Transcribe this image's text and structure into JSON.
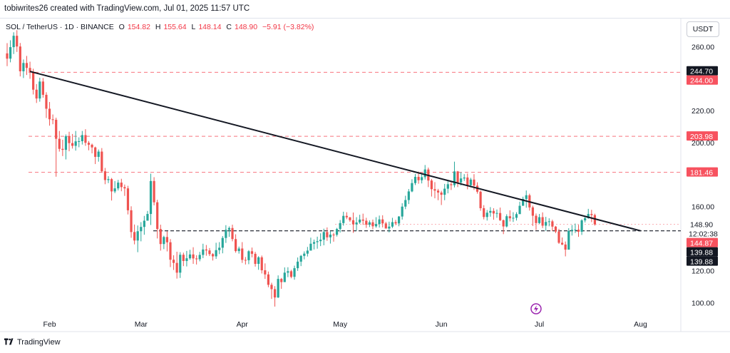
{
  "header": {
    "caption": "tobiwrites26 created with TradingView.com, Jul 01, 2025 11:57 UTC"
  },
  "legend": {
    "symbol": "SOL / TetherUS · 1D · BINANCE",
    "open_label": "O",
    "open": "154.82",
    "high_label": "H",
    "high": "155.64",
    "low_label": "L",
    "low": "148.14",
    "close_label": "C",
    "close": "148.90",
    "change": "−5.91 (−3.82%)"
  },
  "currency_button": "USDT",
  "footer": {
    "brand": "TradingView"
  },
  "colors": {
    "up": "#26a69a",
    "down": "#ef5350",
    "resistance": "#f7525f",
    "trendline": "#131722",
    "badge_red": "#f7525f",
    "badge_dark": "#131722"
  },
  "chart_data": {
    "type": "candlestick",
    "symbol": "SOL / TetherUS",
    "interval": "1D",
    "exchange": "BINANCE",
    "y_axis_ticks": [
      260,
      240,
      220,
      200,
      160,
      120,
      100
    ],
    "ylim": [
      93,
      270
    ],
    "x_axis_ticks": [
      "Feb",
      "Mar",
      "Apr",
      "May",
      "Jun",
      "Jul",
      "Aug"
    ],
    "grid": false,
    "horizontal_levels": [
      {
        "value": 244.0,
        "label": "244.00",
        "style": "dashed-red"
      },
      {
        "value": 203.98,
        "label": "203.98",
        "style": "dashed-red"
      },
      {
        "value": 181.46,
        "label": "181.46",
        "style": "dashed-red"
      },
      {
        "value": 144.87,
        "label": "144.87",
        "style": "dashed-black"
      }
    ],
    "price_badges": [
      {
        "value": 244.7,
        "label": "244.70",
        "color": "dark"
      },
      {
        "value": 244.0,
        "label": "244.00",
        "color": "red"
      },
      {
        "value": 203.98,
        "label": "203.98",
        "color": "red"
      },
      {
        "value": 181.46,
        "label": "181.46",
        "color": "red"
      },
      {
        "value": 148.9,
        "label": "148.90",
        "color": "plain",
        "sub": "12:02:38"
      },
      {
        "value": 144.87,
        "label": "144.87",
        "color": "red"
      },
      {
        "value": 139.88,
        "label": "139.88",
        "color": "dark"
      },
      {
        "value": 139.88,
        "label": "139.88",
        "color": "dark"
      }
    ],
    "trendline": {
      "from": {
        "date": "2025-01-26",
        "value": 244.5
      },
      "to": {
        "date": "2025-08-01",
        "value": 144.87
      }
    },
    "range_start": "2025-01-19",
    "candles": [
      [
        255.8,
        252.5,
        262.2,
        247.8
      ],
      [
        252.5,
        259.7,
        264.0,
        250.2
      ],
      [
        259.7,
        266.8,
        269.0,
        255.4
      ],
      [
        266.8,
        260.1,
        270.3,
        256.7
      ],
      [
        260.1,
        244.6,
        262.3,
        241.4
      ],
      [
        244.6,
        249.8,
        252.0,
        240.4
      ],
      [
        249.8,
        246.7,
        254.2,
        242.3
      ],
      [
        246.7,
        244.3,
        250.6,
        239.9
      ],
      [
        244.3,
        233.1,
        246.2,
        230.1
      ],
      [
        233.1,
        227.6,
        236.6,
        224.8
      ],
      [
        227.6,
        238.2,
        240.6,
        225.6
      ],
      [
        238.2,
        229.9,
        240.4,
        228.1
      ],
      [
        229.9,
        221.2,
        231.5,
        215.4
      ],
      [
        221.2,
        214.6,
        225.4,
        210.6
      ],
      [
        214.6,
        214.3,
        217.6,
        211.5
      ],
      [
        214.3,
        202.4,
        215.6,
        178.7
      ],
      [
        202.4,
        196.1,
        207.3,
        194.4
      ],
      [
        196.1,
        195.5,
        201.8,
        191.6
      ],
      [
        195.5,
        204.0,
        205.1,
        189.5
      ],
      [
        204.0,
        199.7,
        206.8,
        194.6
      ],
      [
        199.7,
        198.0,
        205.4,
        196.3
      ],
      [
        198.0,
        200.8,
        207.3,
        195.0
      ],
      [
        200.8,
        200.9,
        203.3,
        197.1
      ],
      [
        200.9,
        204.7,
        207.3,
        198.8
      ],
      [
        204.7,
        199.9,
        208.4,
        198.0
      ],
      [
        199.9,
        198.7,
        201.0,
        195.2
      ],
      [
        198.7,
        197.0,
        199.4,
        193.3
      ],
      [
        197.0,
        191.1,
        197.5,
        186.6
      ],
      [
        191.1,
        194.4,
        195.7,
        188.1
      ],
      [
        194.4,
        182.1,
        196.6,
        181.3
      ],
      [
        182.1,
        176.6,
        184.2,
        174.0
      ],
      [
        176.6,
        177.2,
        179.0,
        174.7
      ],
      [
        177.2,
        169.5,
        177.9,
        163.8
      ],
      [
        169.5,
        171.4,
        176.0,
        168.4
      ],
      [
        171.4,
        175.0,
        176.7,
        170.1
      ],
      [
        175.0,
        172.2,
        177.4,
        169.6
      ],
      [
        172.2,
        171.4,
        173.8,
        166.7
      ],
      [
        171.4,
        157.7,
        173.0,
        155.1
      ],
      [
        157.7,
        144.1,
        160.2,
        140.5
      ],
      [
        144.1,
        138.8,
        148.8,
        136.4
      ],
      [
        138.8,
        144.6,
        148.2,
        131.5
      ],
      [
        144.6,
        147.3,
        150.3,
        138.3
      ],
      [
        147.3,
        151.2,
        154.2,
        142.4
      ],
      [
        151.2,
        155.4,
        157.3,
        151.6
      ],
      [
        155.4,
        176.0,
        180.6,
        148.5
      ],
      [
        176.0,
        162.7,
        178.4,
        160.8
      ],
      [
        162.7,
        146.0,
        164.3,
        140.1
      ],
      [
        146.0,
        136.6,
        148.7,
        132.5
      ],
      [
        136.6,
        141.0,
        141.8,
        133.4
      ],
      [
        141.0,
        137.7,
        144.6,
        132.0
      ],
      [
        137.7,
        126.8,
        139.7,
        122.2
      ],
      [
        126.8,
        124.8,
        129.6,
        120.4
      ],
      [
        124.8,
        118.7,
        131.8,
        115.0
      ],
      [
        118.7,
        129.9,
        131.5,
        115.4
      ],
      [
        129.9,
        126.0,
        131.2,
        122.8
      ],
      [
        126.0,
        127.7,
        132.3,
        122.6
      ],
      [
        127.7,
        130.1,
        133.0,
        126.8
      ],
      [
        130.1,
        127.6,
        134.6,
        124.2
      ],
      [
        127.6,
        127.1,
        129.6,
        123.8
      ],
      [
        127.1,
        129.8,
        131.7,
        125.8
      ],
      [
        129.8,
        133.2,
        136.8,
        127.8
      ],
      [
        133.2,
        132.6,
        136.0,
        129.3
      ],
      [
        132.6,
        130.3,
        134.1,
        129.1
      ],
      [
        130.3,
        128.9,
        130.9,
        126.3
      ],
      [
        128.9,
        132.8,
        137.4,
        127.3
      ],
      [
        132.8,
        134.3,
        137.8,
        130.3
      ],
      [
        134.3,
        140.4,
        141.6,
        130.8
      ],
      [
        140.4,
        145.5,
        148.4,
        137.3
      ],
      [
        145.5,
        146.6,
        147.6,
        141.1
      ],
      [
        146.6,
        139.7,
        148.7,
        138.3
      ],
      [
        139.7,
        132.2,
        142.7,
        131.2
      ],
      [
        132.2,
        133.8,
        135.0,
        130.6
      ],
      [
        133.8,
        126.7,
        137.8,
        124.8
      ],
      [
        126.7,
        126.5,
        128.5,
        123.8
      ],
      [
        126.5,
        132.1,
        132.8,
        124.0
      ],
      [
        132.1,
        130.5,
        134.4,
        128.3
      ],
      [
        130.5,
        124.2,
        131.7,
        122.5
      ],
      [
        124.2,
        128.3,
        129.0,
        120.5
      ],
      [
        128.3,
        120.2,
        129.4,
        118.2
      ],
      [
        120.2,
        117.6,
        124.5,
        114.8
      ],
      [
        117.6,
        111.1,
        119.4,
        109.6
      ],
      [
        111.1,
        108.4,
        112.4,
        102.3
      ],
      [
        108.4,
        103.2,
        110.3,
        97.5
      ],
      [
        103.2,
        114.8,
        117.0,
        102.9
      ],
      [
        114.8,
        112.8,
        115.4,
        108.6
      ],
      [
        112.8,
        118.7,
        122.0,
        112.9
      ],
      [
        118.7,
        119.6,
        122.1,
        115.9
      ],
      [
        119.6,
        116.1,
        120.5,
        115.2
      ],
      [
        116.1,
        121.5,
        123.1,
        114.3
      ],
      [
        121.5,
        125.6,
        128.2,
        119.8
      ],
      [
        125.6,
        129.2,
        129.8,
        122.8
      ],
      [
        129.2,
        130.6,
        132.0,
        127.0
      ],
      [
        130.6,
        132.5,
        134.8,
        128.8
      ],
      [
        132.5,
        136.8,
        140.6,
        134.4
      ],
      [
        136.8,
        137.8,
        139.4,
        133.2
      ],
      [
        137.8,
        138.4,
        141.2,
        133.7
      ],
      [
        138.4,
        139.3,
        143.3,
        135.3
      ],
      [
        139.3,
        144.1,
        146.2,
        135.8
      ],
      [
        144.1,
        140.8,
        147.0,
        138.6
      ],
      [
        140.8,
        142.5,
        144.7,
        136.9
      ],
      [
        142.5,
        142.4,
        143.6,
        138.1
      ],
      [
        142.4,
        146.0,
        146.7,
        141.3
      ],
      [
        146.0,
        149.7,
        151.6,
        143.8
      ],
      [
        149.7,
        154.2,
        156.8,
        148.1
      ],
      [
        154.2,
        153.3,
        156.5,
        152.1
      ],
      [
        153.3,
        151.5,
        153.5,
        150.5
      ],
      [
        151.5,
        148.9,
        156.3,
        143.6
      ],
      [
        148.9,
        150.1,
        153.4,
        144.9
      ],
      [
        150.1,
        151.9,
        154.9,
        149.2
      ],
      [
        151.9,
        151.2,
        155.6,
        148.6
      ],
      [
        151.2,
        148.7,
        153.0,
        146.7
      ],
      [
        148.7,
        150.2,
        151.4,
        147.2
      ],
      [
        150.2,
        147.7,
        151.9,
        145.8
      ],
      [
        147.7,
        149.1,
        153.4,
        146.8
      ],
      [
        149.1,
        152.0,
        154.4,
        146.9
      ],
      [
        152.0,
        149.5,
        154.6,
        147.0
      ],
      [
        149.5,
        146.3,
        150.5,
        146.4
      ],
      [
        146.3,
        147.5,
        150.6,
        143.9
      ],
      [
        147.5,
        150.3,
        153.0,
        146.6
      ],
      [
        150.3,
        149.5,
        151.7,
        148.4
      ],
      [
        149.5,
        153.8,
        154.1,
        147.7
      ],
      [
        153.8,
        160.0,
        162.1,
        151.9
      ],
      [
        160.0,
        164.1,
        166.8,
        158.4
      ],
      [
        164.1,
        169.5,
        171.0,
        161.6
      ],
      [
        169.5,
        174.7,
        177.1,
        169.0
      ],
      [
        174.7,
        178.6,
        180.4,
        173.5
      ],
      [
        178.6,
        176.5,
        181.9,
        174.3
      ],
      [
        176.5,
        178.4,
        181.1,
        174.5
      ],
      [
        178.4,
        183.2,
        186.0,
        176.9
      ],
      [
        183.2,
        176.3,
        184.4,
        172.2
      ],
      [
        176.3,
        170.9,
        177.3,
        166.3
      ],
      [
        170.9,
        170.0,
        175.3,
        165.2
      ],
      [
        170.0,
        168.8,
        171.1,
        164.0
      ],
      [
        168.8,
        167.4,
        169.9,
        161.0
      ],
      [
        167.4,
        171.2,
        174.2,
        164.0
      ],
      [
        171.2,
        174.0,
        176.3,
        168.3
      ],
      [
        174.0,
        173.4,
        175.2,
        170.4
      ],
      [
        173.4,
        182.0,
        188.1,
        172.0
      ],
      [
        182.0,
        175.1,
        182.3,
        172.2
      ],
      [
        175.1,
        177.6,
        181.5,
        173.2
      ],
      [
        177.6,
        178.2,
        180.3,
        176.0
      ],
      [
        178.2,
        173.4,
        180.7,
        170.8
      ],
      [
        173.4,
        176.9,
        178.0,
        172.0
      ],
      [
        176.9,
        173.1,
        180.3,
        170.4
      ],
      [
        173.1,
        169.3,
        175.2,
        168.1
      ],
      [
        169.3,
        159.0,
        170.1,
        157.4
      ],
      [
        159.0,
        153.5,
        160.9,
        152.0
      ],
      [
        153.5,
        156.2,
        157.9,
        151.3
      ],
      [
        156.2,
        157.3,
        159.7,
        153.7
      ],
      [
        157.3,
        155.7,
        159.0,
        151.8
      ],
      [
        155.7,
        156.0,
        158.2,
        153.0
      ],
      [
        156.0,
        151.5,
        159.4,
        151.0
      ],
      [
        151.5,
        147.6,
        151.9,
        142.8
      ],
      [
        147.6,
        154.0,
        155.2,
        147.0
      ],
      [
        154.0,
        152.7,
        157.7,
        150.7
      ],
      [
        152.7,
        153.0,
        156.5,
        150.4
      ],
      [
        153.0,
        155.3,
        156.5,
        151.3
      ],
      [
        155.3,
        160.5,
        163.1,
        155.9
      ],
      [
        160.5,
        164.8,
        166.2,
        160.9
      ],
      [
        164.8,
        167.1,
        170.1,
        159.3
      ],
      [
        167.1,
        159.5,
        168.1,
        157.5
      ],
      [
        159.5,
        154.3,
        160.6,
        147.9
      ],
      [
        154.3,
        149.7,
        155.7,
        145.4
      ],
      [
        149.7,
        153.4,
        155.4,
        149.2
      ],
      [
        153.4,
        148.1,
        156.4,
        146.6
      ],
      [
        148.1,
        150.4,
        153.6,
        144.8
      ],
      [
        150.4,
        150.8,
        152.7,
        147.7
      ],
      [
        150.8,
        147.5,
        151.8,
        144.7
      ],
      [
        147.5,
        144.4,
        147.9,
        143.4
      ],
      [
        144.4,
        137.4,
        146.1,
        136.7
      ],
      [
        137.4,
        136.3,
        140.7,
        135.9
      ],
      [
        136.3,
        133.1,
        138.2,
        128.9
      ],
      [
        133.1,
        144.8,
        146.5,
        133.1
      ],
      [
        144.8,
        145.5,
        148.5,
        141.9
      ],
      [
        145.5,
        145.6,
        149.4,
        143.5
      ],
      [
        145.6,
        144.3,
        148.6,
        141.1
      ],
      [
        144.3,
        151.4,
        152.1,
        142.3
      ],
      [
        151.4,
        152.8,
        154.2,
        150.1
      ],
      [
        152.8,
        155.4,
        158.6,
        152.4
      ],
      [
        155.4,
        154.7,
        158.0,
        150.3
      ],
      [
        154.7,
        148.9,
        155.6,
        148.1
      ]
    ]
  }
}
